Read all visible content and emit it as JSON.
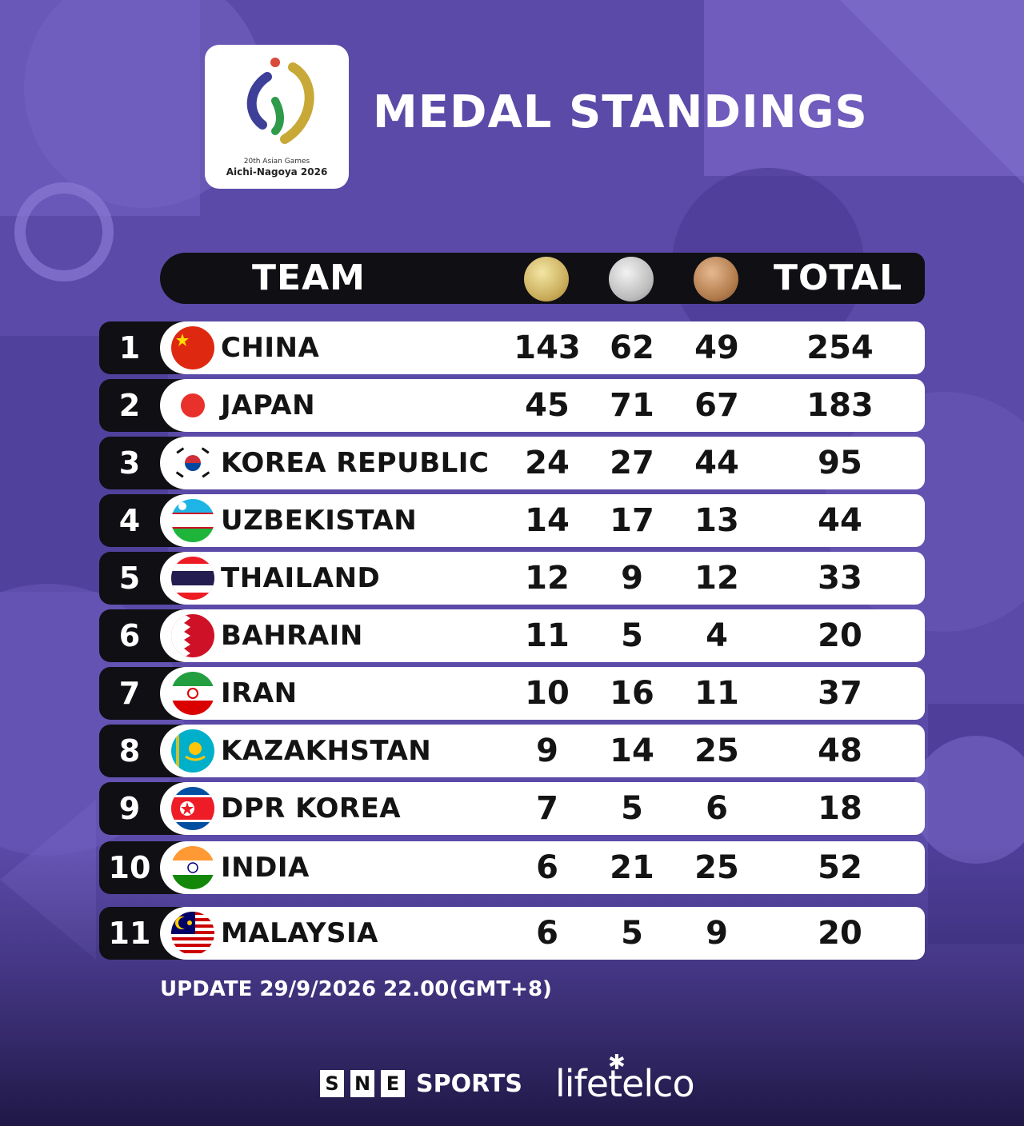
{
  "logo": {
    "line1": "20th Asian Games",
    "line2": "Aichi-Nagoya 2026"
  },
  "title": "MEDAL STANDINGS",
  "header": {
    "team": "TEAM",
    "total": "TOTAL"
  },
  "rows": [
    {
      "rank": "1",
      "team": "CHINA",
      "gold": "143",
      "silver": "62",
      "bronze": "49",
      "total": "254"
    },
    {
      "rank": "2",
      "team": "JAPAN",
      "gold": "45",
      "silver": "71",
      "bronze": "67",
      "total": "183"
    },
    {
      "rank": "3",
      "team": "KOREA REPUBLIC",
      "gold": "24",
      "silver": "27",
      "bronze": "44",
      "total": "95"
    },
    {
      "rank": "4",
      "team": "UZBEKISTAN",
      "gold": "14",
      "silver": "17",
      "bronze": "13",
      "total": "44"
    },
    {
      "rank": "5",
      "team": "THAILAND",
      "gold": "12",
      "silver": "9",
      "bronze": "12",
      "total": "33"
    },
    {
      "rank": "6",
      "team": "BAHRAIN",
      "gold": "11",
      "silver": "5",
      "bronze": "4",
      "total": "20"
    },
    {
      "rank": "7",
      "team": "IRAN",
      "gold": "10",
      "silver": "16",
      "bronze": "11",
      "total": "37"
    },
    {
      "rank": "8",
      "team": "KAZAKHSTAN",
      "gold": "9",
      "silver": "14",
      "bronze": "25",
      "total": "48"
    },
    {
      "rank": "9",
      "team": "DPR KOREA",
      "gold": "7",
      "silver": "5",
      "bronze": "6",
      "total": "18"
    },
    {
      "rank": "10",
      "team": "INDIA",
      "gold": "6",
      "silver": "21",
      "bronze": "25",
      "total": "52"
    },
    {
      "rank": "11",
      "team": "MALAYSIA",
      "gold": "6",
      "silver": "5",
      "bronze": "9",
      "total": "20"
    }
  ],
  "update": "UPDATE 29/9/2026 22.00(GMT+8)",
  "sponsors": {
    "sne_letters": [
      "S",
      "N",
      "E"
    ],
    "sne_word": "SPORTS",
    "lifetelco": "lifetelco"
  },
  "colors": {
    "background": "#5a4aa6",
    "bar": "#0f0f14",
    "row": "#ffffff"
  }
}
